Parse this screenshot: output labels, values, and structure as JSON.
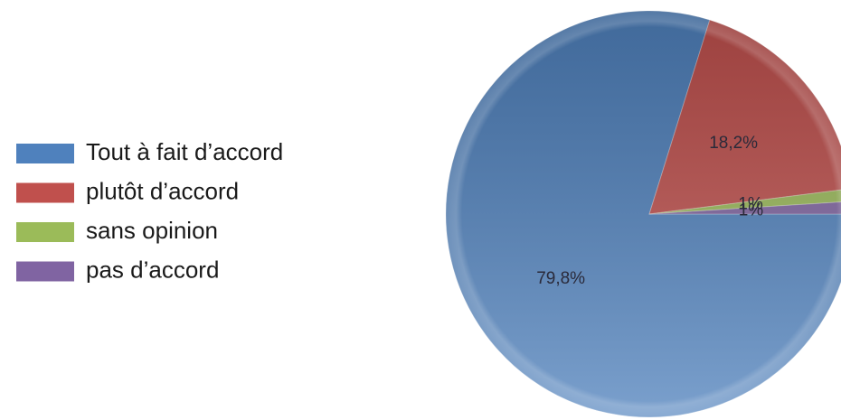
{
  "chart_data": {
    "type": "pie",
    "categories": [
      "Tout à fait d’accord",
      "plutôt d’accord",
      "sans opinion",
      "pas d’accord"
    ],
    "values": [
      79.8,
      18.2,
      1,
      1
    ],
    "value_labels": [
      "79,8%",
      "18,2%",
      "1%",
      "1%"
    ],
    "colors": [
      "#4f81bd",
      "#c0504d",
      "#9bbb59",
      "#8064a2"
    ],
    "legend": "left"
  }
}
